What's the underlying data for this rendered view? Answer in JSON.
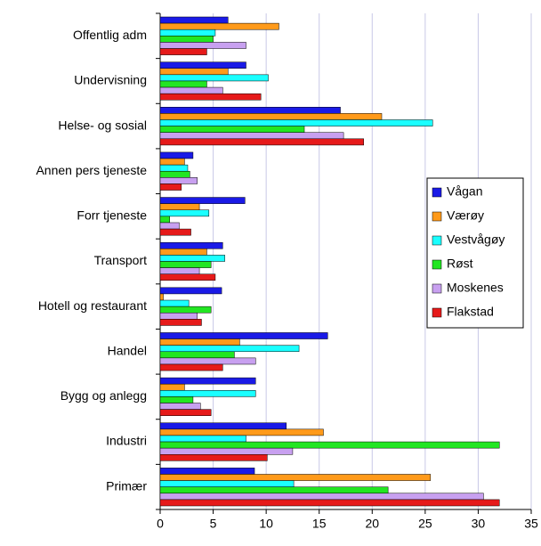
{
  "chart_data": {
    "type": "hbar",
    "categories": [
      "Offentlig adm",
      "Undervisning",
      "Helse- og sosial",
      "Annen pers tjeneste",
      "Forr tjeneste",
      "Transport",
      "Hotell og restaurant",
      "Handel",
      "Bygg og anlegg",
      "Industri",
      "Primær"
    ],
    "series": [
      {
        "name": "Vågan",
        "color": "#1a1ae6",
        "values": [
          6.4,
          8.1,
          17.0,
          3.1,
          8.0,
          5.9,
          5.8,
          15.8,
          9.0,
          11.9,
          8.9
        ]
      },
      {
        "name": "Værøy",
        "color": "#ff9a1a",
        "values": [
          11.2,
          6.4,
          20.9,
          2.3,
          3.7,
          4.4,
          0.3,
          7.5,
          2.3,
          15.4,
          25.5
        ]
      },
      {
        "name": "Vestvågøy",
        "color": "#1affff",
        "values": [
          5.2,
          10.2,
          25.7,
          2.6,
          4.6,
          6.1,
          2.7,
          13.1,
          9.0,
          8.1,
          12.6
        ]
      },
      {
        "name": "Røst",
        "color": "#22e622",
        "values": [
          5.0,
          4.4,
          13.6,
          2.8,
          0.9,
          4.8,
          4.8,
          7.0,
          3.1,
          32.0,
          21.5
        ]
      },
      {
        "name": "Moskenes",
        "color": "#c8a0f0",
        "values": [
          8.1,
          5.9,
          17.3,
          3.5,
          1.8,
          3.7,
          3.5,
          9.0,
          3.8,
          12.5,
          30.5
        ]
      },
      {
        "name": "Flakstad",
        "color": "#e61a1a",
        "values": [
          4.4,
          9.5,
          19.2,
          2.0,
          2.9,
          5.2,
          3.9,
          5.9,
          4.8,
          10.1,
          32.0
        ]
      }
    ],
    "xlim": [
      0,
      35
    ],
    "xticks": [
      0,
      5,
      10,
      15,
      20,
      25,
      30,
      35
    ],
    "grid": true
  }
}
